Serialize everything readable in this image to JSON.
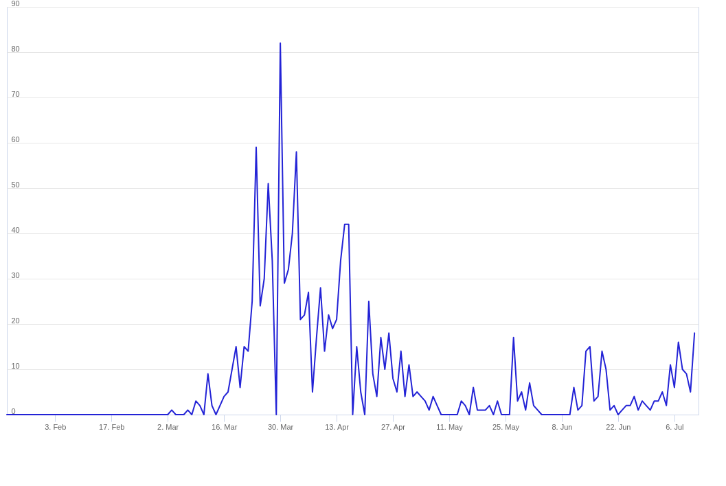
{
  "chart_data": {
    "type": "line",
    "x": [
      "--01-22",
      "--01-23",
      "--01-24",
      "--01-25",
      "--01-26",
      "--01-27",
      "--01-28",
      "--01-29",
      "--01-30",
      "--01-31",
      "--02-01",
      "--02-02",
      "--02-03",
      "--02-04",
      "--02-05",
      "--02-06",
      "--02-07",
      "--02-08",
      "--02-09",
      "--02-10",
      "--02-11",
      "--02-12",
      "--02-13",
      "--02-14",
      "--02-15",
      "--02-16",
      "--02-17",
      "--02-18",
      "--02-19",
      "--02-20",
      "--02-21",
      "--02-22",
      "--02-23",
      "--02-24",
      "--02-25",
      "--02-26",
      "--02-27",
      "--02-28",
      "--02-29",
      "--03-01",
      "--03-02",
      "--03-03",
      "--03-04",
      "--03-05",
      "--03-06",
      "--03-07",
      "--03-08",
      "--03-09",
      "--03-10",
      "--03-11",
      "--03-12",
      "--03-13",
      "--03-14",
      "--03-15",
      "--03-16",
      "--03-17",
      "--03-18",
      "--03-19",
      "--03-20",
      "--03-21",
      "--03-22",
      "--03-23",
      "--03-24",
      "--03-25",
      "--03-26",
      "--03-27",
      "--03-28",
      "--03-29",
      "--03-30",
      "--03-31",
      "--04-01",
      "--04-02",
      "--04-03",
      "--04-04",
      "--04-05",
      "--04-06",
      "--04-07",
      "--04-08",
      "--04-09",
      "--04-10",
      "--04-11",
      "--04-12",
      "--04-13",
      "--04-14",
      "--04-15",
      "--04-16",
      "--04-17",
      "--04-18",
      "--04-19",
      "--04-20",
      "--04-21",
      "--04-22",
      "--04-23",
      "--04-24",
      "--04-25",
      "--04-26",
      "--04-27",
      "--04-28",
      "--04-29",
      "--04-30",
      "--05-01",
      "--05-02",
      "--05-03",
      "--05-04",
      "--05-05",
      "--05-06",
      "--05-07",
      "--05-08",
      "--05-09",
      "--05-10",
      "--05-11",
      "--05-12",
      "--05-13",
      "--05-14",
      "--05-15",
      "--05-16",
      "--05-17",
      "--05-18",
      "--05-19",
      "--05-20",
      "--05-21",
      "--05-22",
      "--05-23",
      "--05-24",
      "--05-25",
      "--05-26",
      "--05-27",
      "--05-28",
      "--05-29",
      "--05-30",
      "--05-31",
      "--06-01",
      "--06-02",
      "--06-03",
      "--06-04",
      "--06-05",
      "--06-06",
      "--06-07",
      "--06-08",
      "--06-09",
      "--06-10",
      "--06-11",
      "--06-12",
      "--06-13",
      "--06-14",
      "--06-15",
      "--06-16",
      "--06-17",
      "--06-18",
      "--06-19",
      "--06-20",
      "--06-21",
      "--06-22",
      "--06-23",
      "--06-24",
      "--06-25",
      "--06-26",
      "--06-27",
      "--06-28",
      "--06-29",
      "--06-30",
      "--07-01",
      "--07-02",
      "--07-03",
      "--07-04",
      "--07-05",
      "--07-06",
      "--07-07",
      "--07-08",
      "--07-09",
      "--07-10",
      "--07-11"
    ],
    "series": [
      {
        "color": "#2323d6",
        "values": [
          0,
          0,
          0,
          0,
          0,
          0,
          0,
          0,
          0,
          0,
          0,
          0,
          0,
          0,
          0,
          0,
          0,
          0,
          0,
          0,
          0,
          0,
          0,
          0,
          0,
          0,
          0,
          0,
          0,
          0,
          0,
          0,
          0,
          0,
          0,
          0,
          0,
          0,
          0,
          0,
          0,
          1,
          0,
          0,
          0,
          1,
          0,
          3,
          2,
          0,
          9,
          2,
          0,
          2,
          4,
          5,
          10,
          15,
          6,
          15,
          14,
          25,
          59,
          24,
          30,
          51,
          34,
          0,
          82,
          29,
          32,
          40,
          58,
          21,
          22,
          27,
          5,
          17,
          28,
          14,
          22,
          19,
          21,
          34,
          42,
          42,
          0,
          15,
          5,
          0,
          25,
          9,
          4,
          17,
          10,
          18,
          8,
          5,
          14,
          4,
          11,
          4,
          5,
          4,
          3,
          1,
          4,
          2,
          0,
          0,
          0,
          0,
          0,
          3,
          2,
          0,
          6,
          1,
          1,
          1,
          2,
          0,
          3,
          0,
          0,
          0,
          17,
          3,
          5,
          1,
          7,
          2,
          1,
          0,
          0,
          0,
          0,
          0,
          0,
          0,
          0,
          6,
          1,
          2,
          14,
          15,
          3,
          4,
          14,
          10,
          1,
          2,
          0,
          1,
          2,
          2,
          4,
          1,
          3,
          2,
          1,
          3,
          3,
          5,
          2,
          11,
          6,
          16,
          10,
          9,
          5,
          18
        ]
      }
    ],
    "xlim": [
      "--01-22",
      "--07-12"
    ],
    "xticks": [
      {
        "value": "--02-03",
        "label": "3. Feb"
      },
      {
        "value": "--02-17",
        "label": "17. Feb"
      },
      {
        "value": "--03-02",
        "label": "2. Mar"
      },
      {
        "value": "--03-16",
        "label": "16. Mar"
      },
      {
        "value": "--03-30",
        "label": "30. Mar"
      },
      {
        "value": "--04-13",
        "label": "13. Apr"
      },
      {
        "value": "--04-27",
        "label": "27. Apr"
      },
      {
        "value": "--05-11",
        "label": "11. May"
      },
      {
        "value": "--05-25",
        "label": "25. May"
      },
      {
        "value": "--06-08",
        "label": "8. Jun"
      },
      {
        "value": "--06-22",
        "label": "22. Jun"
      },
      {
        "value": "--07-06",
        "label": "6. Jul"
      }
    ],
    "ylim": [
      0,
      90
    ],
    "yticks": [
      0,
      10,
      20,
      30,
      40,
      50,
      60,
      70,
      80,
      90
    ],
    "grid": "y",
    "marker": "none",
    "line_style": "solid"
  }
}
